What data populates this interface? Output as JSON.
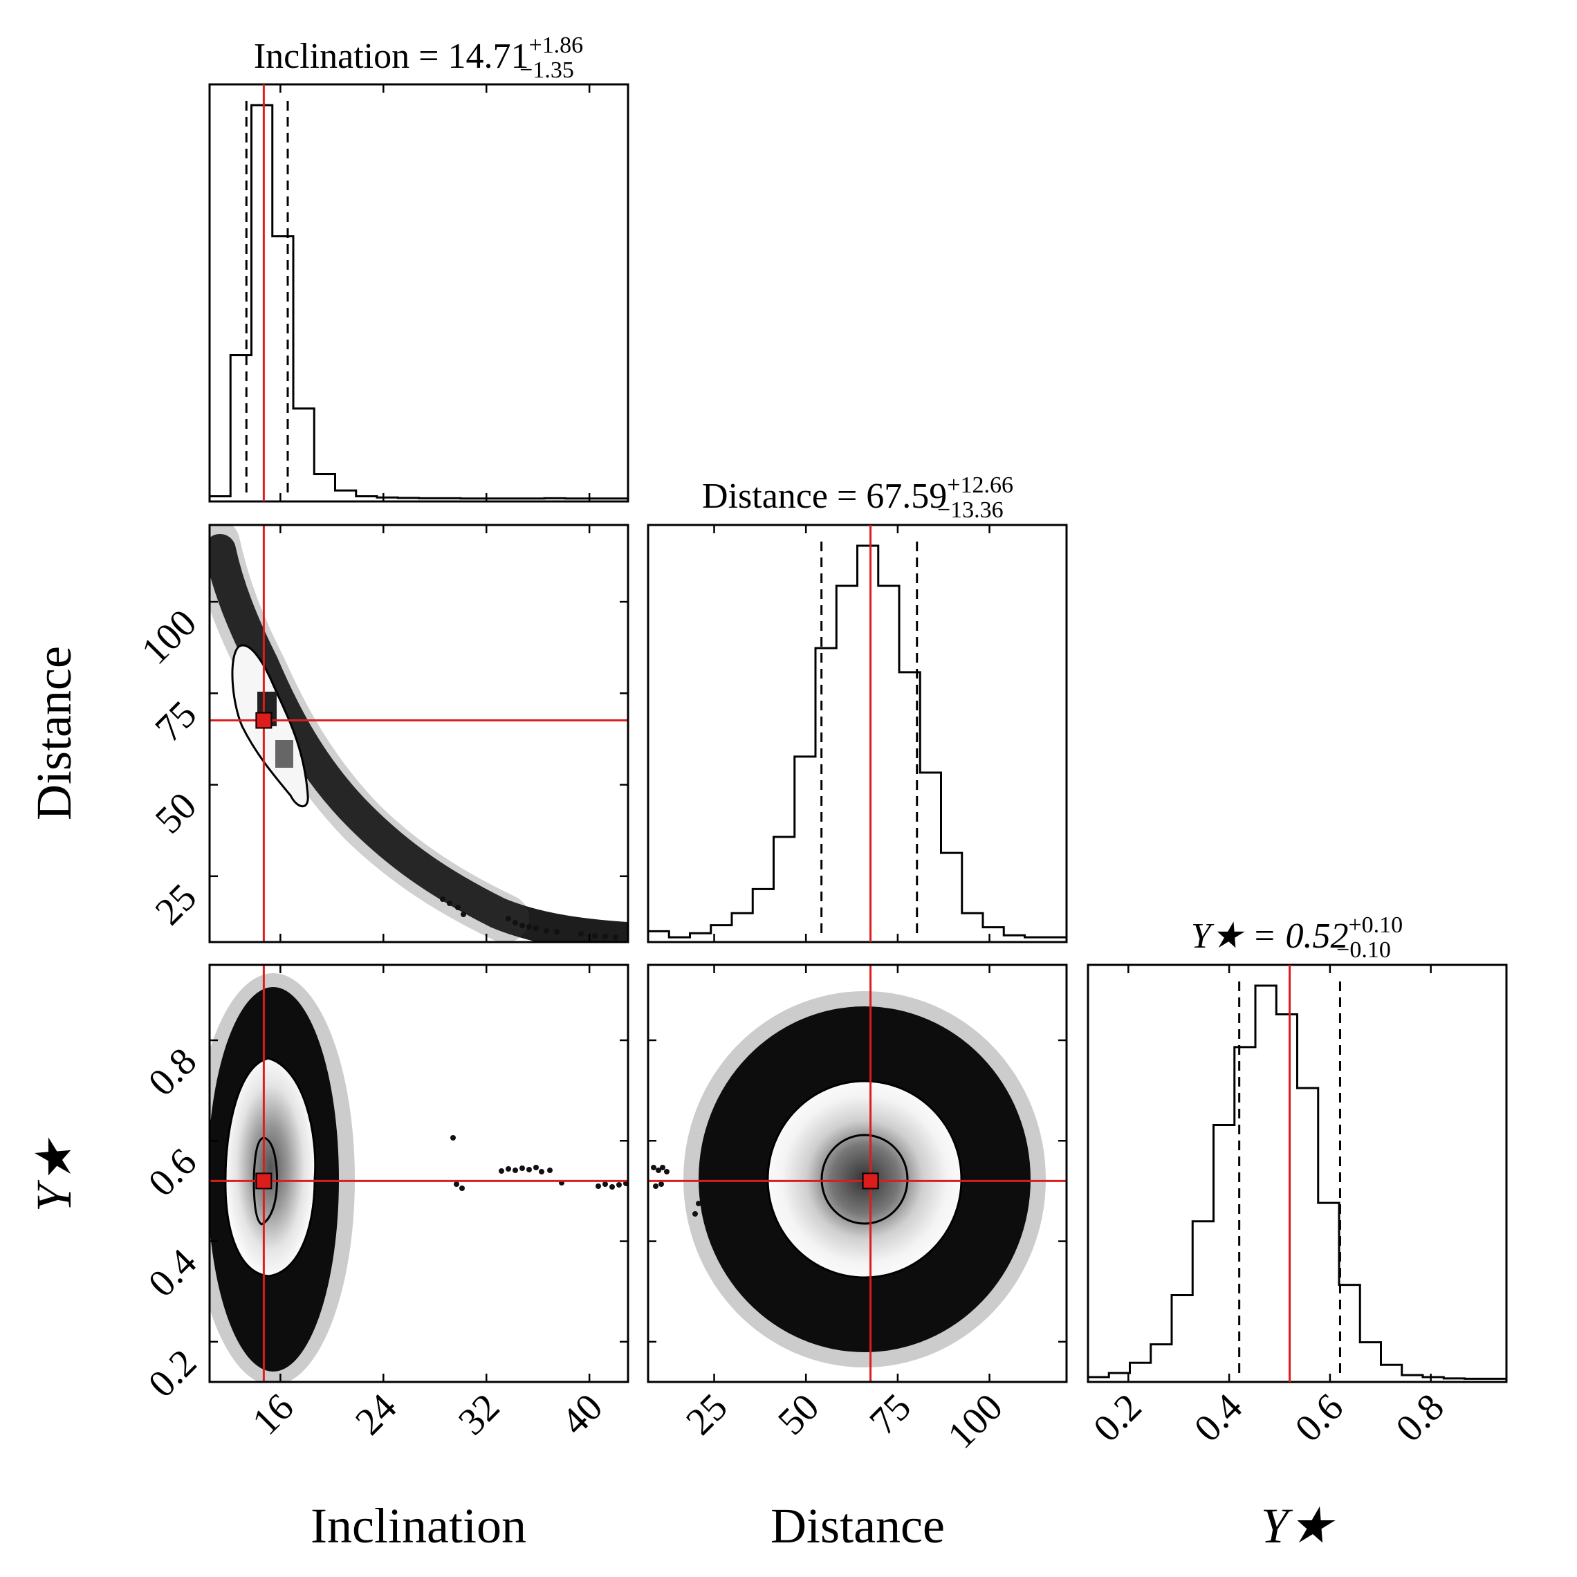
{
  "chart_data": {
    "type": "corner",
    "parameters": [
      {
        "name": "Inclination",
        "median": 14.71,
        "plus": 1.86,
        "minus": 1.35,
        "range": [
          10.5,
          43
        ]
      },
      {
        "name": "Distance",
        "median": 67.59,
        "plus": 12.66,
        "minus": 13.36,
        "range": [
          7,
          121
        ]
      },
      {
        "name": "Y★",
        "median": 0.52,
        "plus": 0.1,
        "minus": 0.1,
        "range": [
          0.12,
          0.95
        ]
      }
    ],
    "titles": {
      "inclination": {
        "lhs": "Inclination = 14.71",
        "sup": "+1.86",
        "sub": "−1.35"
      },
      "distance": {
        "lhs": "Distance = 67.59",
        "sup": "+12.66",
        "sub": "−13.36"
      },
      "ystar": {
        "lhs": "Y★ = 0.52",
        "sup": "+0.10",
        "sub": "−0.10"
      }
    },
    "axis_labels": {
      "inclination": "Inclination",
      "distance": "Distance",
      "ystar": "Y★"
    },
    "truth_color": "#dd1c1c",
    "histograms": {
      "inclination": {
        "edges": [
          10.5,
          12.125,
          13.75,
          15.375,
          17.0,
          18.625,
          20.25,
          21.875,
          23.5,
          25.125,
          26.75,
          28.375,
          30.0,
          31.625,
          33.25,
          34.875,
          36.5,
          38.125,
          39.75,
          41.375,
          43.0
        ],
        "counts": [
          0.006,
          0.35,
          0.96,
          0.64,
          0.22,
          0.06,
          0.02,
          0.006,
          0.003,
          0.002,
          0.001,
          0.001,
          0.0005,
          0.0005,
          0.0005,
          0.0005,
          0.001,
          0.0005,
          0.0005,
          0.0005
        ],
        "quantiles": [
          13.36,
          14.71,
          16.57
        ]
      },
      "distance": {
        "edges": [
          7.0,
          12.7,
          18.4,
          24.1,
          29.8,
          35.5,
          41.2,
          46.9,
          52.6,
          58.3,
          64.0,
          69.7,
          75.4,
          81.1,
          86.8,
          92.5,
          98.2,
          103.9,
          109.6,
          115.3,
          121.0
        ],
        "counts": [
          0.02,
          0.005,
          0.015,
          0.035,
          0.065,
          0.125,
          0.255,
          0.455,
          0.725,
          0.88,
          0.98,
          0.88,
          0.665,
          0.415,
          0.215,
          0.065,
          0.03,
          0.01,
          0.005,
          0.005
        ],
        "quantiles": [
          54.23,
          67.59,
          80.25
        ]
      },
      "ystar": {
        "edges": [
          0.12,
          0.1615,
          0.203,
          0.2445,
          0.286,
          0.3275,
          0.369,
          0.4105,
          0.452,
          0.4935,
          0.535,
          0.5765,
          0.618,
          0.6595,
          0.701,
          0.7425,
          0.784,
          0.8255,
          0.867,
          0.9085,
          0.95
        ],
        "counts": [
          0.005,
          0.015,
          0.04,
          0.085,
          0.205,
          0.385,
          0.62,
          0.81,
          0.96,
          0.89,
          0.71,
          0.43,
          0.23,
          0.09,
          0.035,
          0.01,
          0.005,
          0.002,
          0.001,
          0.001
        ],
        "quantiles": [
          0.42,
          0.52,
          0.62
        ]
      }
    },
    "ticks": {
      "inclination": [
        16,
        24,
        32,
        40
      ],
      "distance": [
        25,
        50,
        75,
        100
      ],
      "ystar": [
        0.2,
        0.4,
        0.6,
        0.8
      ]
    },
    "tick_labels": {
      "inclination": [
        "16",
        "24",
        "32",
        "40"
      ],
      "distance": [
        "25",
        "50",
        "75",
        "100"
      ],
      "ystar": [
        "0.2",
        "0.4",
        "0.6",
        "0.8"
      ]
    }
  }
}
